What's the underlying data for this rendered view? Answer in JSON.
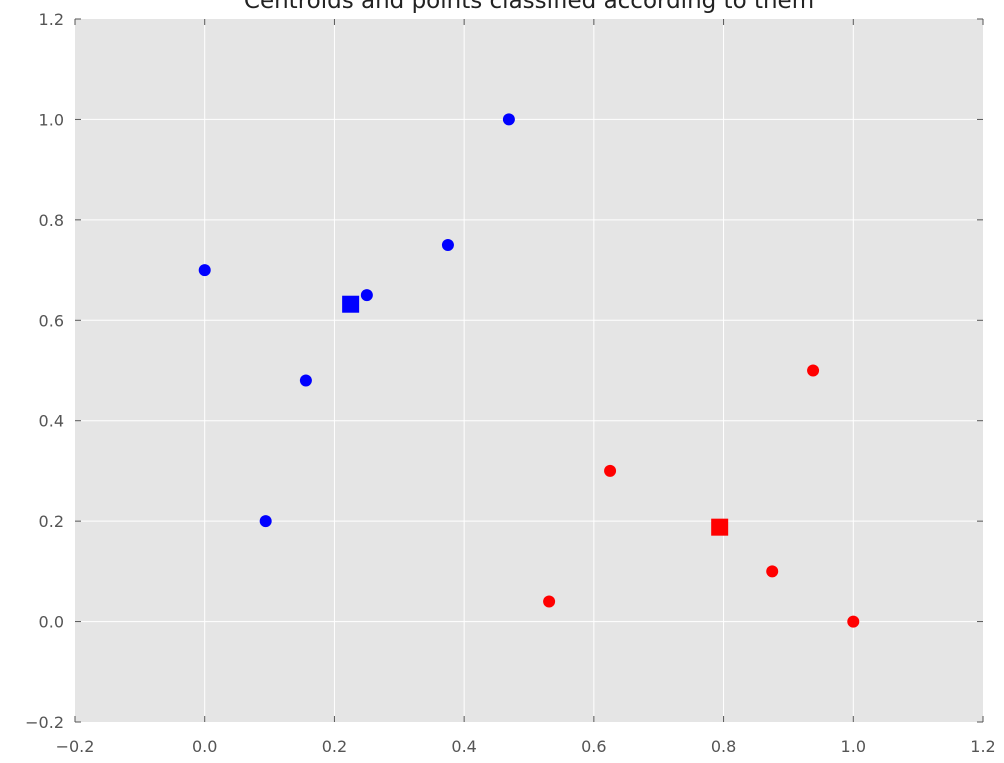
{
  "chart_data": {
    "type": "scatter",
    "title": "Centroids and points classified according to them",
    "xlabel": "",
    "ylabel": "",
    "xlim": [
      -0.2,
      1.2
    ],
    "ylim": [
      -0.2,
      1.2
    ],
    "xticks": [
      "−0.2",
      "0.0",
      "0.2",
      "0.4",
      "0.6",
      "0.8",
      "1.0",
      "1.2"
    ],
    "yticks": [
      "−0.2",
      "0.0",
      "0.2",
      "0.4",
      "0.6",
      "0.8",
      "1.0",
      "1.2"
    ],
    "grid": true,
    "background_color": "#e5e5e5",
    "grid_color": "#ffffff",
    "series": [
      {
        "color": "#0000ff",
        "marker": "circle",
        "points": [
          {
            "x": 0.0,
            "y": 0.7
          },
          {
            "x": 0.094,
            "y": 0.2
          },
          {
            "x": 0.156,
            "y": 0.48
          },
          {
            "x": 0.25,
            "y": 0.65
          },
          {
            "x": 0.375,
            "y": 0.75
          },
          {
            "x": 0.469,
            "y": 1.0
          }
        ]
      },
      {
        "color": "#ff0000",
        "marker": "circle",
        "points": [
          {
            "x": 0.531,
            "y": 0.04
          },
          {
            "x": 0.625,
            "y": 0.3
          },
          {
            "x": 0.875,
            "y": 0.1
          },
          {
            "x": 0.938,
            "y": 0.5
          },
          {
            "x": 1.0,
            "y": 0.0
          }
        ]
      },
      {
        "color": "#0000ff",
        "marker": "square",
        "points": [
          {
            "x": 0.225,
            "y": 0.632
          }
        ]
      },
      {
        "color": "#ff0000",
        "marker": "square",
        "points": [
          {
            "x": 0.794,
            "y": 0.188
          }
        ]
      }
    ]
  }
}
